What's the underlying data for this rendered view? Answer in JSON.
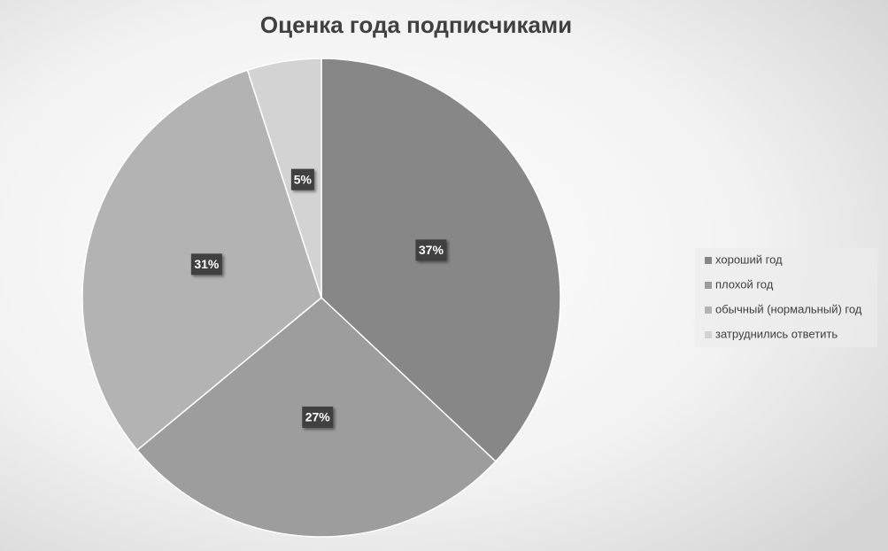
{
  "chart_data": {
    "type": "pie",
    "title": "Оценка года подписчиками",
    "categories": [
      "хороший год",
      "плохой год",
      "обычный (нормальный) год",
      "затруднились ответить"
    ],
    "values": [
      37,
      27,
      31,
      5
    ],
    "value_labels": [
      "37%",
      "27%",
      "31%",
      "5%"
    ],
    "colors": [
      "#878787",
      "#9d9d9d",
      "#b3b3b3",
      "#d3d3d3"
    ],
    "legend": "right"
  }
}
